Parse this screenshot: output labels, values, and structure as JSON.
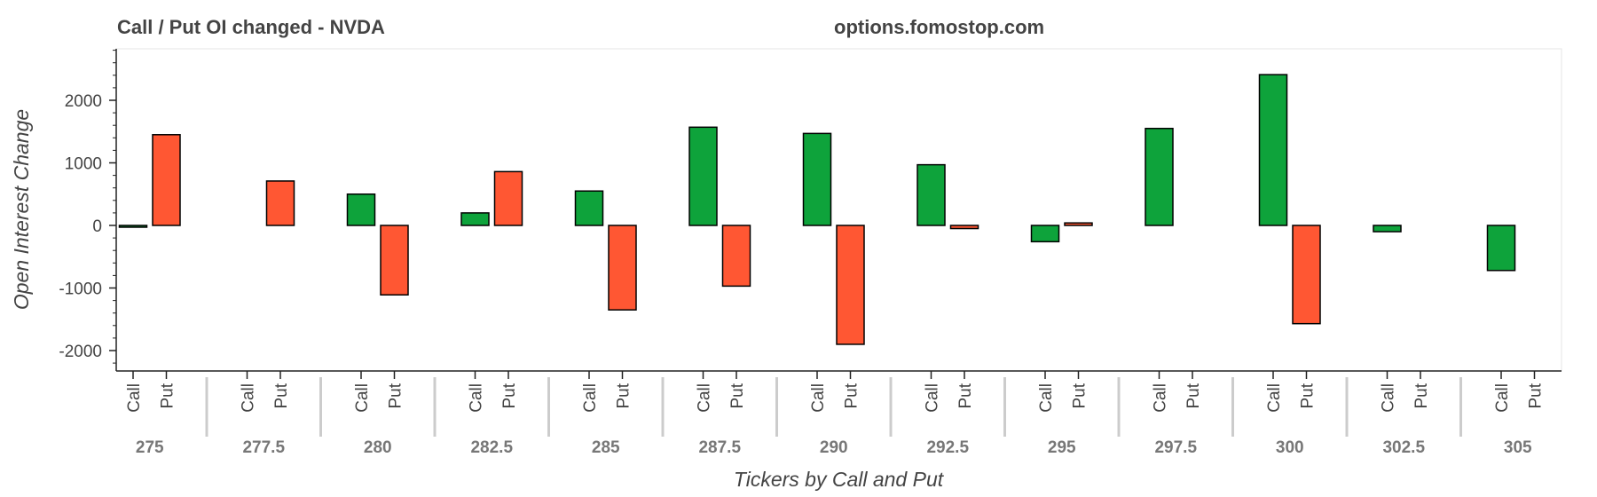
{
  "header": {
    "title": "Call / Put OI changed - NVDA",
    "site": "options.fomostop.com"
  },
  "colors": {
    "call": "#0ea33b",
    "put": "#ff5733",
    "outline": "#000000",
    "axis": "#222222",
    "frame": "#e5e5e5",
    "separator": "#cccccc"
  },
  "chart_data": {
    "type": "bar",
    "title": "Call / Put OI changed - NVDA",
    "xlabel": "Tickers by Call and Put",
    "ylabel": "Open Interest Change",
    "ylim": [
      -2300,
      2850
    ],
    "yticks": [
      -2000,
      -1000,
      0,
      1000,
      2000
    ],
    "grid": false,
    "subcategories": [
      "Call",
      "Put"
    ],
    "categories": [
      "275",
      "277.5",
      "280",
      "282.5",
      "285",
      "287.5",
      "290",
      "292.5",
      "295",
      "297.5",
      "300",
      "302.5",
      "305"
    ],
    "series": [
      {
        "name": "Call",
        "values": [
          -20,
          0,
          500,
          200,
          550,
          1570,
          1470,
          970,
          -260,
          1550,
          2410,
          -100,
          -720
        ]
      },
      {
        "name": "Put",
        "values": [
          1450,
          710,
          -1110,
          860,
          -1350,
          -970,
          -1900,
          -50,
          40,
          0,
          -1570,
          0,
          0
        ]
      }
    ]
  }
}
